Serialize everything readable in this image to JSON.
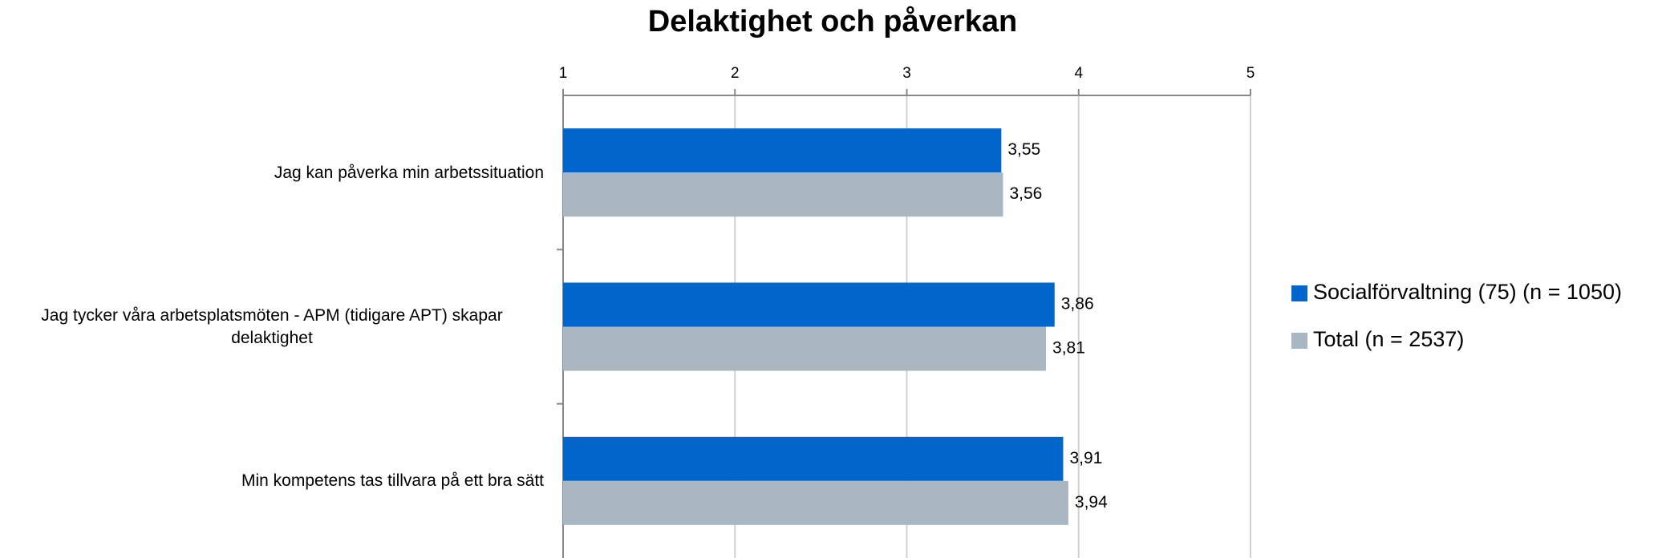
{
  "chart_data": {
    "type": "hbar",
    "title": "Delaktighet och påverkan",
    "categories": [
      "Jag kan påverka min arbetssituation",
      "Jag tycker våra arbetsplatsmöten - APM (tidigare APT) skapar delaktighet",
      "Min kompetens tas tillvara på ett bra sätt"
    ],
    "series": [
      {
        "name": "Socialförvaltning (75) (n = 1050)",
        "color": "#0066cc",
        "values": [
          3.55,
          3.86,
          3.91
        ],
        "value_labels": [
          "3,55",
          "3,86",
          "3,91"
        ]
      },
      {
        "name": "Total (n = 2537)",
        "color": "#a9b7c3",
        "values": [
          3.56,
          3.81,
          3.94
        ],
        "value_labels": [
          "3,56",
          "3,81",
          "3,94"
        ]
      }
    ],
    "xlim": [
      1,
      5
    ],
    "xticks": [
      1,
      2,
      3,
      4,
      5
    ],
    "grid": true,
    "legend": "right"
  }
}
